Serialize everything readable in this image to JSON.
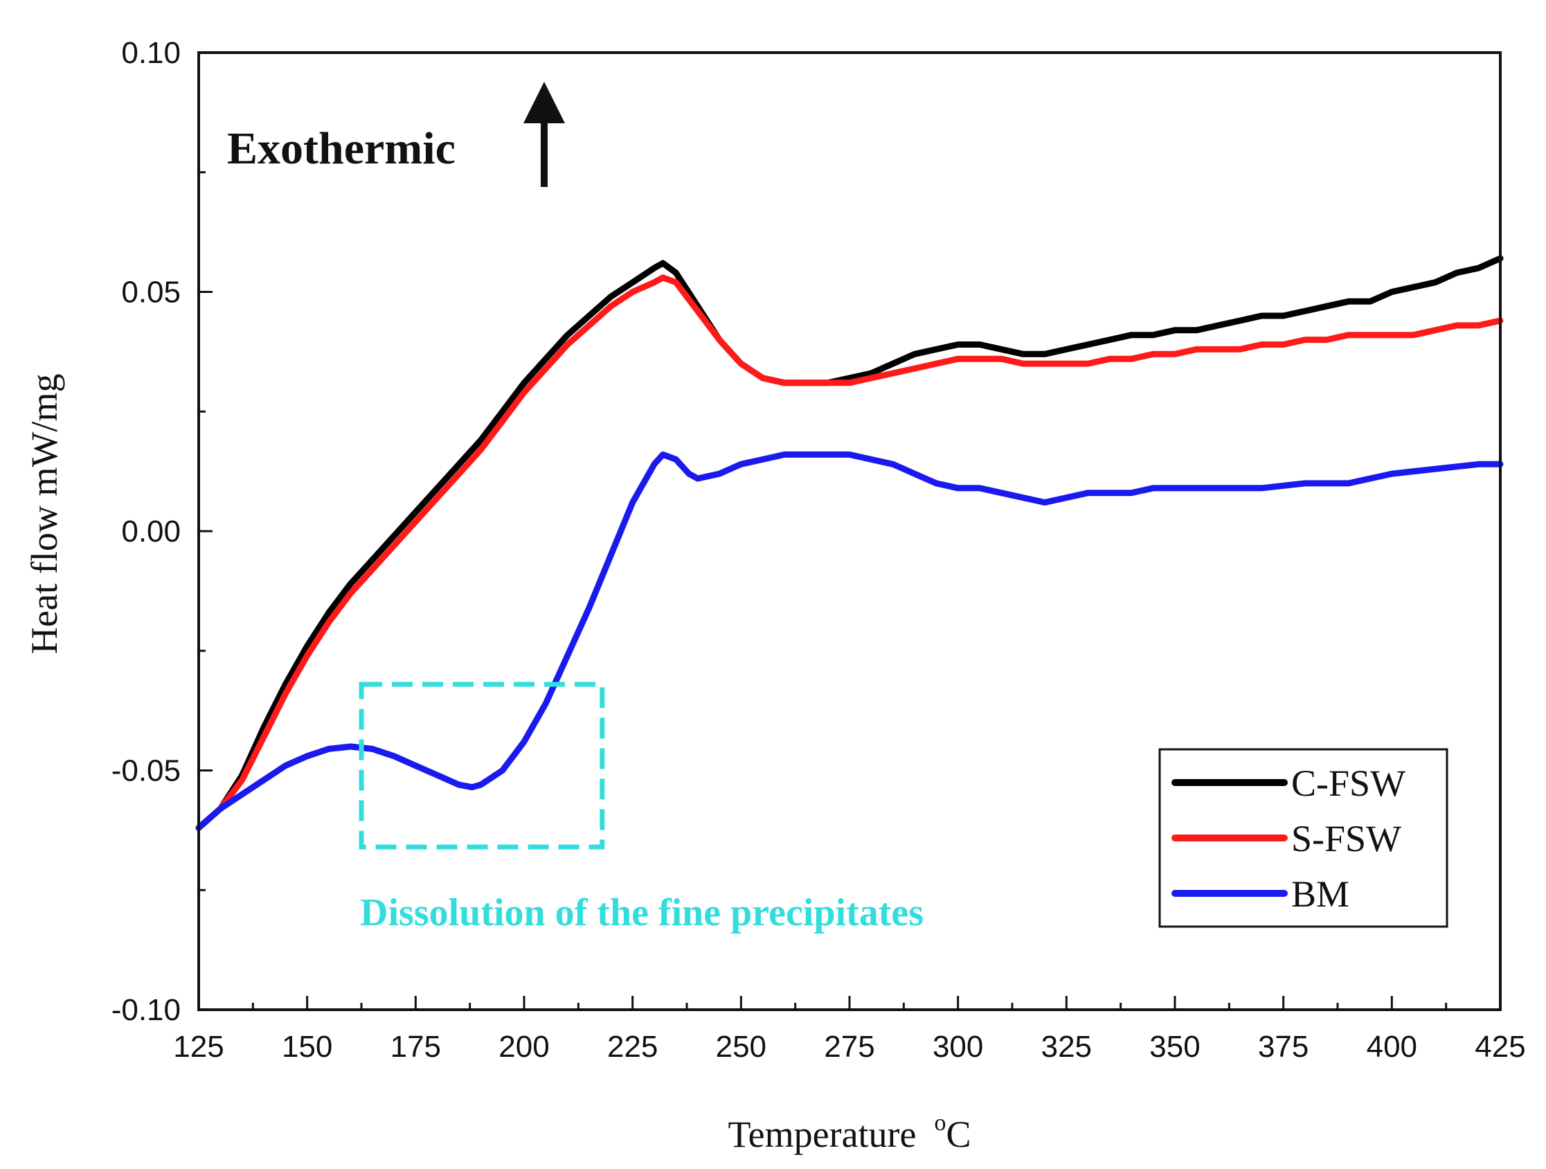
{
  "chart_data": {
    "type": "line",
    "title": "",
    "xlabel": "Temperature",
    "xlabel_unit_sup": "o",
    "xlabel_unit": "C",
    "ylabel": "Heat flow  mW/mg",
    "xlim": [
      125,
      425
    ],
    "ylim": [
      -0.1,
      0.1
    ],
    "x_ticks": [
      125,
      150,
      175,
      200,
      225,
      250,
      275,
      300,
      325,
      350,
      375,
      400,
      425
    ],
    "x_tick_labels": [
      "125",
      "150",
      "175",
      "200",
      "225",
      "250",
      "275",
      "300",
      "325",
      "350",
      "375",
      "400",
      "425"
    ],
    "y_ticks": [
      -0.1,
      -0.05,
      0.0,
      0.05,
      0.1
    ],
    "y_tick_labels": [
      "-0.10",
      "-0.05",
      "0.00",
      "0.05",
      "0.10"
    ],
    "grid": false,
    "legend_position": "bottom-right",
    "series": [
      {
        "name": "C-FSW",
        "color": "#000000",
        "x": [
          125,
          130,
          135,
          140,
          145,
          150,
          155,
          160,
          165,
          170,
          175,
          180,
          185,
          190,
          195,
          200,
          205,
          210,
          215,
          220,
          225,
          230,
          232,
          235,
          240,
          245,
          250,
          255,
          260,
          265,
          270,
          275,
          280,
          285,
          290,
          295,
          300,
          305,
          310,
          315,
          320,
          325,
          330,
          335,
          340,
          345,
          350,
          355,
          360,
          365,
          370,
          375,
          380,
          385,
          390,
          395,
          400,
          405,
          410,
          415,
          420,
          425
        ],
        "y": [
          -0.062,
          -0.058,
          -0.051,
          -0.041,
          -0.032,
          -0.024,
          -0.017,
          -0.011,
          -0.006,
          -0.001,
          0.004,
          0.009,
          0.014,
          0.019,
          0.025,
          0.031,
          0.036,
          0.041,
          0.045,
          0.049,
          0.052,
          0.055,
          0.056,
          0.054,
          0.047,
          0.04,
          0.035,
          0.032,
          0.031,
          0.031,
          0.031,
          0.032,
          0.033,
          0.035,
          0.037,
          0.038,
          0.039,
          0.039,
          0.038,
          0.037,
          0.037,
          0.038,
          0.039,
          0.04,
          0.041,
          0.041,
          0.042,
          0.042,
          0.043,
          0.044,
          0.045,
          0.045,
          0.046,
          0.047,
          0.048,
          0.048,
          0.05,
          0.051,
          0.052,
          0.054,
          0.055,
          0.057
        ]
      },
      {
        "name": "S-FSW",
        "color": "#ff1a1a",
        "x": [
          125,
          130,
          135,
          140,
          145,
          150,
          155,
          160,
          165,
          170,
          175,
          180,
          185,
          190,
          195,
          200,
          205,
          210,
          215,
          220,
          225,
          230,
          232,
          235,
          240,
          245,
          250,
          255,
          260,
          265,
          270,
          275,
          280,
          285,
          290,
          295,
          300,
          305,
          310,
          315,
          320,
          325,
          330,
          335,
          340,
          345,
          350,
          355,
          360,
          365,
          370,
          375,
          380,
          385,
          390,
          395,
          400,
          405,
          410,
          415,
          420,
          425
        ],
        "y": [
          -0.062,
          -0.058,
          -0.052,
          -0.043,
          -0.034,
          -0.026,
          -0.019,
          -0.013,
          -0.008,
          -0.003,
          0.002,
          0.007,
          0.012,
          0.017,
          0.023,
          0.029,
          0.034,
          0.039,
          0.043,
          0.047,
          0.05,
          0.052,
          0.053,
          0.052,
          0.046,
          0.04,
          0.035,
          0.032,
          0.031,
          0.031,
          0.031,
          0.031,
          0.032,
          0.033,
          0.034,
          0.035,
          0.036,
          0.036,
          0.036,
          0.035,
          0.035,
          0.035,
          0.035,
          0.036,
          0.036,
          0.037,
          0.037,
          0.038,
          0.038,
          0.038,
          0.039,
          0.039,
          0.04,
          0.04,
          0.041,
          0.041,
          0.041,
          0.041,
          0.042,
          0.043,
          0.043,
          0.044
        ]
      },
      {
        "name": "BM",
        "color": "#1a1aee",
        "x": [
          125,
          130,
          135,
          140,
          145,
          150,
          155,
          160,
          165,
          170,
          175,
          180,
          185,
          188,
          190,
          195,
          200,
          205,
          210,
          215,
          220,
          225,
          230,
          232,
          235,
          238,
          240,
          245,
          250,
          255,
          260,
          265,
          270,
          275,
          280,
          285,
          290,
          295,
          300,
          305,
          310,
          315,
          320,
          325,
          330,
          335,
          340,
          345,
          350,
          360,
          370,
          380,
          390,
          400,
          410,
          420,
          425
        ],
        "y": [
          -0.062,
          -0.058,
          -0.055,
          -0.052,
          -0.049,
          -0.047,
          -0.0455,
          -0.045,
          -0.0455,
          -0.047,
          -0.049,
          -0.051,
          -0.053,
          -0.0535,
          -0.053,
          -0.05,
          -0.044,
          -0.036,
          -0.026,
          -0.016,
          -0.005,
          0.006,
          0.014,
          0.016,
          0.015,
          0.012,
          0.011,
          0.012,
          0.014,
          0.015,
          0.016,
          0.016,
          0.016,
          0.016,
          0.015,
          0.014,
          0.012,
          0.01,
          0.009,
          0.009,
          0.008,
          0.007,
          0.006,
          0.007,
          0.008,
          0.008,
          0.008,
          0.009,
          0.009,
          0.009,
          0.009,
          0.01,
          0.01,
          0.012,
          0.013,
          0.014,
          0.014
        ]
      }
    ],
    "annotations": {
      "exothermic_label": "Exothermic",
      "region_label": "Dissolution of the fine precipitates",
      "region_box_x": [
        162.5,
        218
      ],
      "region_box_y": [
        -0.066,
        -0.032
      ],
      "region_color": "#33dddd"
    }
  }
}
